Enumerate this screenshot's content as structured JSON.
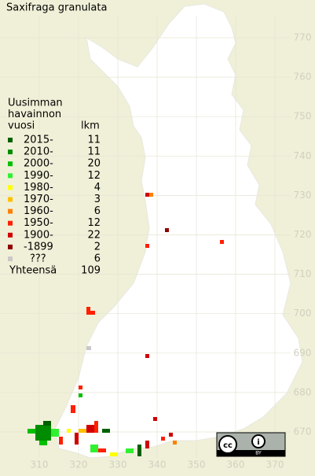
{
  "title": "Saxifraga granulata",
  "legend": {
    "heading": [
      "Uusimman",
      "havainnon",
      "vuosi"
    ],
    "count_heading": "lkm",
    "entries": [
      {
        "label": "2015-",
        "color": "#006000",
        "count": 11
      },
      {
        "label": "2010-",
        "color": "#008c00",
        "count": 11
      },
      {
        "label": "2000-",
        "color": "#00c000",
        "count": 20
      },
      {
        "label": "1990-",
        "color": "#30f030",
        "count": 12
      },
      {
        "label": "1980-",
        "color": "#ffff00",
        "count": 4
      },
      {
        "label": "1970-",
        "color": "#ffc000",
        "count": 3
      },
      {
        "label": "1960-",
        "color": "#ff8000",
        "count": 6
      },
      {
        "label": "1950-",
        "color": "#ff2000",
        "count": 12
      },
      {
        "label": "1900-",
        "color": "#d00000",
        "count": 22
      },
      {
        "label": "-1899",
        "color": "#900000",
        "count": 2
      },
      {
        "label": "???",
        "color": "#c8c8c8",
        "count": 6
      }
    ],
    "total_label": "Yhteensä",
    "total": 109
  },
  "grid": {
    "north_labels": [
      770,
      760,
      750,
      740,
      730,
      720,
      710,
      700,
      690,
      680,
      670
    ],
    "east_labels": [
      310,
      320,
      330,
      340,
      350,
      360,
      370
    ]
  }
}
